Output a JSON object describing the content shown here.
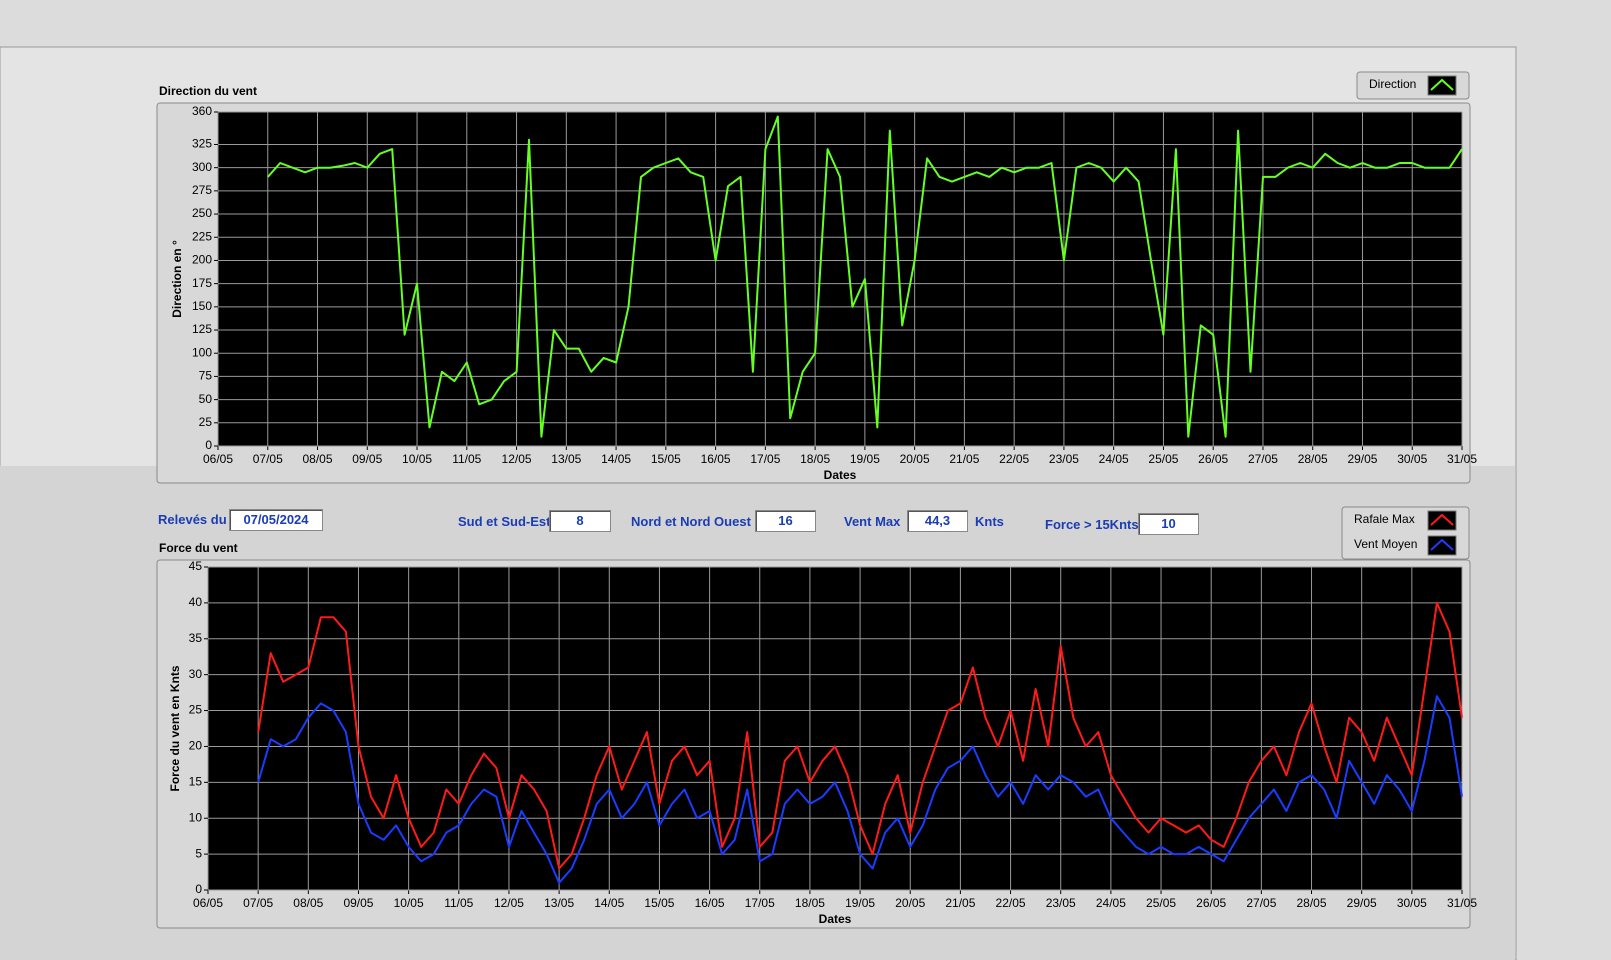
{
  "chart_data": [
    {
      "type": "line",
      "title": "Direction du vent",
      "xlabel": "Dates",
      "ylabel": "Direction en °",
      "x": [
        7,
        7.25,
        7.5,
        7.75,
        8,
        8.25,
        8.5,
        8.75,
        9,
        9.25,
        9.5,
        9.75,
        10,
        10.25,
        10.5,
        10.75,
        11,
        11.25,
        11.5,
        11.75,
        12,
        12.25,
        12.5,
        12.75,
        13,
        13.25,
        13.5,
        13.75,
        14,
        14.25,
        14.5,
        14.75,
        15,
        15.25,
        15.5,
        15.75,
        16,
        16.25,
        16.5,
        16.75,
        17,
        17.25,
        17.5,
        17.75,
        18,
        18.25,
        18.5,
        18.75,
        19,
        19.25,
        19.5,
        19.75,
        20,
        20.25,
        20.5,
        20.75,
        21,
        21.25,
        21.5,
        21.75,
        22,
        22.25,
        22.5,
        22.75,
        23,
        23.25,
        23.5,
        23.75,
        24,
        24.25,
        24.5,
        24.75,
        25,
        25.25,
        25.5,
        25.75,
        26,
        26.25,
        26.5,
        26.75,
        27,
        27.25,
        27.5,
        27.75,
        28,
        28.25,
        28.5,
        28.75,
        29,
        29.25,
        29.5,
        29.75,
        30,
        30.25,
        30.5,
        30.75,
        31
      ],
      "series": [
        {
          "name": "Direction",
          "color": "#66ff22",
          "values": [
            290,
            305,
            300,
            295,
            300,
            300,
            302,
            305,
            300,
            315,
            320,
            120,
            175,
            20,
            80,
            70,
            90,
            45,
            50,
            70,
            80,
            330,
            10,
            125,
            105,
            105,
            80,
            95,
            90,
            150,
            290,
            300,
            305,
            310,
            295,
            290,
            200,
            280,
            290,
            80,
            320,
            355,
            30,
            80,
            100,
            320,
            290,
            150,
            180,
            20,
            340,
            130,
            200,
            310,
            290,
            285,
            290,
            295,
            290,
            300,
            295,
            300,
            300,
            305,
            200,
            300,
            305,
            300,
            285,
            300,
            285,
            200,
            120,
            320,
            10,
            130,
            120,
            10,
            340,
            80,
            290,
            290,
            300,
            305,
            300,
            315,
            305,
            300,
            305,
            300,
            300,
            305,
            305,
            300,
            300,
            300,
            320
          ]
        }
      ],
      "xlim": [
        6,
        31
      ],
      "ylim": [
        0,
        360
      ],
      "xticks": [
        {
          "value": 6,
          "label": "06/05"
        },
        {
          "value": 7,
          "label": "07/05"
        },
        {
          "value": 8,
          "label": "08/05"
        },
        {
          "value": 9,
          "label": "09/05"
        },
        {
          "value": 10,
          "label": "10/05"
        },
        {
          "value": 11,
          "label": "11/05"
        },
        {
          "value": 12,
          "label": "12/05"
        },
        {
          "value": 13,
          "label": "13/05"
        },
        {
          "value": 14,
          "label": "14/05"
        },
        {
          "value": 15,
          "label": "15/05"
        },
        {
          "value": 16,
          "label": "16/05"
        },
        {
          "value": 17,
          "label": "17/05"
        },
        {
          "value": 18,
          "label": "18/05"
        },
        {
          "value": 19,
          "label": "19/05"
        },
        {
          "value": 20,
          "label": "20/05"
        },
        {
          "value": 21,
          "label": "21/05"
        },
        {
          "value": 22,
          "label": "22/05"
        },
        {
          "value": 23,
          "label": "23/05"
        },
        {
          "value": 24,
          "label": "24/05"
        },
        {
          "value": 25,
          "label": "25/05"
        },
        {
          "value": 26,
          "label": "26/05"
        },
        {
          "value": 27,
          "label": "27/05"
        },
        {
          "value": 28,
          "label": "28/05"
        },
        {
          "value": 29,
          "label": "29/05"
        },
        {
          "value": 30,
          "label": "30/05"
        },
        {
          "value": 31,
          "label": "31/05"
        }
      ],
      "yticks": [
        0,
        25,
        50,
        75,
        100,
        125,
        150,
        175,
        200,
        225,
        250,
        275,
        300,
        325,
        360
      ],
      "grid": true
    },
    {
      "type": "line",
      "title": "Force du vent",
      "xlabel": "Dates",
      "ylabel": "Force du vent en Knts",
      "x": [
        7,
        7.25,
        7.5,
        7.75,
        8,
        8.25,
        8.5,
        8.75,
        9,
        9.25,
        9.5,
        9.75,
        10,
        10.25,
        10.5,
        10.75,
        11,
        11.25,
        11.5,
        11.75,
        12,
        12.25,
        12.5,
        12.75,
        13,
        13.25,
        13.5,
        13.75,
        14,
        14.25,
        14.5,
        14.75,
        15,
        15.25,
        15.5,
        15.75,
        16,
        16.25,
        16.5,
        16.75,
        17,
        17.25,
        17.5,
        17.75,
        18,
        18.25,
        18.5,
        18.75,
        19,
        19.25,
        19.5,
        19.75,
        20,
        20.25,
        20.5,
        20.75,
        21,
        21.25,
        21.5,
        21.75,
        22,
        22.25,
        22.5,
        22.75,
        23,
        23.25,
        23.5,
        23.75,
        24,
        24.25,
        24.5,
        24.75,
        25,
        25.25,
        25.5,
        25.75,
        26,
        26.25,
        26.5,
        26.75,
        27,
        27.25,
        27.5,
        27.75,
        28,
        28.25,
        28.5,
        28.75,
        29,
        29.25,
        29.5,
        29.75,
        30,
        30.25,
        30.5,
        30.75,
        31
      ],
      "series": [
        {
          "name": "Rafale Max",
          "color": "#ff1a1a",
          "values": [
            22,
            33,
            29,
            30,
            31,
            38,
            38,
            36,
            20,
            13,
            10,
            16,
            10,
            6,
            8,
            14,
            12,
            16,
            19,
            17,
            10,
            16,
            14,
            11,
            3,
            5,
            10,
            16,
            20,
            14,
            18,
            22,
            12,
            18,
            20,
            16,
            18,
            6,
            10,
            22,
            6,
            8,
            18,
            20,
            15,
            18,
            20,
            16,
            9,
            5,
            12,
            16,
            8,
            15,
            20,
            25,
            26,
            31,
            24,
            20,
            25,
            18,
            28,
            20,
            34,
            24,
            20,
            22,
            16,
            13,
            10,
            8,
            10,
            9,
            8,
            9,
            7,
            6,
            10,
            15,
            18,
            20,
            16,
            22,
            26,
            20,
            15,
            24,
            22,
            18,
            24,
            20,
            16,
            28,
            40,
            36,
            24
          ]
        },
        {
          "name": "Vent Moyen",
          "color": "#1a3cff",
          "values": [
            15,
            21,
            20,
            21,
            24,
            26,
            25,
            22,
            12,
            8,
            7,
            9,
            6,
            4,
            5,
            8,
            9,
            12,
            14,
            13,
            6,
            11,
            8,
            5,
            1,
            3,
            7,
            12,
            14,
            10,
            12,
            15,
            9,
            12,
            14,
            10,
            11,
            5,
            7,
            14,
            4,
            5,
            12,
            14,
            12,
            13,
            15,
            11,
            5,
            3,
            8,
            10,
            6,
            9,
            14,
            17,
            18,
            20,
            16,
            13,
            15,
            12,
            16,
            14,
            16,
            15,
            13,
            14,
            10,
            8,
            6,
            5,
            6,
            5,
            5,
            6,
            5,
            4,
            7,
            10,
            12,
            14,
            11,
            15,
            16,
            14,
            10,
            18,
            15,
            12,
            16,
            14,
            11,
            18,
            27,
            24,
            13
          ]
        }
      ],
      "xlim": [
        6,
        31
      ],
      "ylim": [
        0,
        45
      ],
      "xticks": [
        {
          "value": 6,
          "label": "06/05"
        },
        {
          "value": 7,
          "label": "07/05"
        },
        {
          "value": 8,
          "label": "08/05"
        },
        {
          "value": 9,
          "label": "09/05"
        },
        {
          "value": 10,
          "label": "10/05"
        },
        {
          "value": 11,
          "label": "11/05"
        },
        {
          "value": 12,
          "label": "12/05"
        },
        {
          "value": 13,
          "label": "13/05"
        },
        {
          "value": 14,
          "label": "14/05"
        },
        {
          "value": 15,
          "label": "15/05"
        },
        {
          "value": 16,
          "label": "16/05"
        },
        {
          "value": 17,
          "label": "17/05"
        },
        {
          "value": 18,
          "label": "18/05"
        },
        {
          "value": 19,
          "label": "19/05"
        },
        {
          "value": 20,
          "label": "20/05"
        },
        {
          "value": 21,
          "label": "21/05"
        },
        {
          "value": 22,
          "label": "22/05"
        },
        {
          "value": 23,
          "label": "23/05"
        },
        {
          "value": 24,
          "label": "24/05"
        },
        {
          "value": 25,
          "label": "25/05"
        },
        {
          "value": 26,
          "label": "26/05"
        },
        {
          "value": 27,
          "label": "27/05"
        },
        {
          "value": 28,
          "label": "28/05"
        },
        {
          "value": 29,
          "label": "29/05"
        },
        {
          "value": 30,
          "label": "30/05"
        },
        {
          "value": 31,
          "label": "31/05"
        }
      ],
      "yticks": [
        0,
        5,
        10,
        15,
        20,
        25,
        30,
        35,
        40,
        45
      ],
      "grid": true
    }
  ],
  "controls": [
    {
      "label": "Relevés du",
      "value": "07/05/2024"
    },
    {
      "label": "Sud et Sud-Est",
      "value": 8
    },
    {
      "label": "Nord et Nord Ouest",
      "value": 16
    },
    {
      "label": "Vent Max",
      "value": "44,3",
      "unit": "Knts"
    },
    {
      "label": "Force > 15Knts",
      "value": 10
    }
  ]
}
